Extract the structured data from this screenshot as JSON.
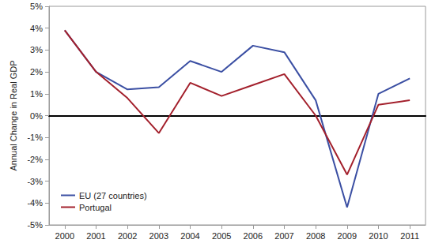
{
  "chart_data": {
    "type": "line",
    "y_label": "Annual Change in Real GDP",
    "categories": [
      "2000",
      "2001",
      "2002",
      "2003",
      "2004",
      "2005",
      "2006",
      "2007",
      "2008",
      "2009",
      "2010",
      "2011"
    ],
    "series": [
      {
        "name": "EU (27 countries)",
        "color": "#3b4fa3",
        "values": [
          3.9,
          2.0,
          1.2,
          1.3,
          2.5,
          2.0,
          3.2,
          2.9,
          0.7,
          -4.2,
          1.0,
          1.7
        ]
      },
      {
        "name": "Portugal",
        "color": "#a3202c",
        "values": [
          3.9,
          2.0,
          0.8,
          -0.8,
          1.5,
          0.9,
          1.4,
          1.9,
          0.0,
          -2.7,
          0.5,
          0.7
        ]
      }
    ],
    "ylim": [
      -5,
      5
    ],
    "yticks": [
      {
        "value": -5,
        "label": "-5%"
      },
      {
        "value": -4,
        "label": "-4%"
      },
      {
        "value": -3,
        "label": "-3%"
      },
      {
        "value": -2,
        "label": "-2%"
      },
      {
        "value": -1,
        "label": "-1%"
      },
      {
        "value": 0,
        "label": "0%"
      },
      {
        "value": 1,
        "label": "1%"
      },
      {
        "value": 2,
        "label": "2%"
      },
      {
        "value": 3,
        "label": "3%"
      },
      {
        "value": 4,
        "label": "4%"
      },
      {
        "value": 5,
        "label": "5%"
      }
    ],
    "grid": false,
    "legend": "lower left"
  }
}
